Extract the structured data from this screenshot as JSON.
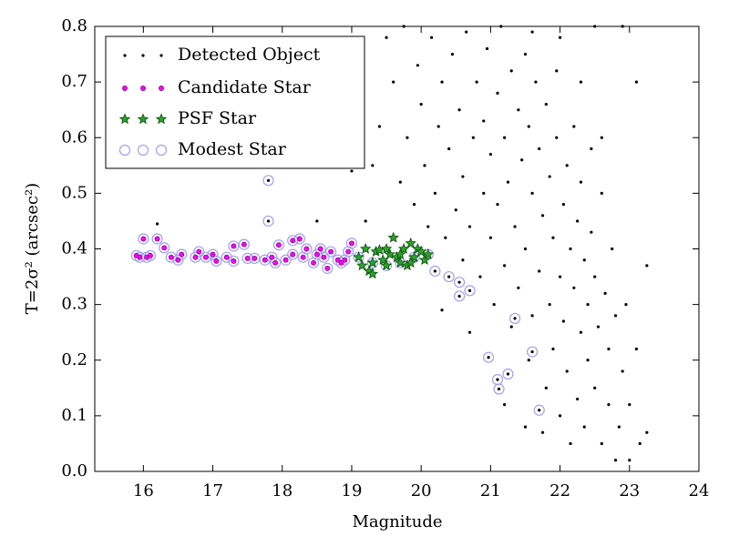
{
  "chart_data": {
    "type": "scatter",
    "xlabel": "Magnitude",
    "ylabel": "T=2σ² (arcsec²)",
    "xlim": [
      15.3,
      24
    ],
    "ylim": [
      0,
      0.8
    ],
    "xticks": [
      16,
      17,
      18,
      19,
      20,
      21,
      22,
      23,
      24
    ],
    "yticks": [
      {
        "value": 0,
        "label": "0.0"
      },
      0.1,
      0.2,
      0.3,
      0.4,
      0.5,
      0.6,
      0.7,
      0.8
    ],
    "legend": "upper left",
    "series": [
      {
        "name": "Modest Star",
        "color": "#9f9ff5",
        "marker": "open-circle",
        "x": [
          15.9,
          15.95,
          16.0,
          16.05,
          16.1,
          16.2,
          16.3,
          16.4,
          16.5,
          16.55,
          16.75,
          16.8,
          16.9,
          17.0,
          17.05,
          17.2,
          17.3,
          17.3,
          17.45,
          17.5,
          17.6,
          17.75,
          17.85,
          17.9,
          17.95,
          18.05,
          18.15,
          18.15,
          18.25,
          18.3,
          18.35,
          18.45,
          18.5,
          18.55,
          18.6,
          18.65,
          18.7,
          18.8,
          18.85,
          18.9,
          18.95,
          19.0,
          17.8,
          17.8,
          19.1,
          19.3,
          19.5,
          19.7,
          19.9,
          20.1,
          20.2,
          20.4,
          20.55,
          20.55,
          20.7,
          20.97,
          21.1,
          21.12,
          21.25,
          21.35,
          21.6,
          21.7
        ],
        "y": [
          0.388,
          0.385,
          0.418,
          0.385,
          0.388,
          0.418,
          0.402,
          0.385,
          0.38,
          0.39,
          0.385,
          0.395,
          0.385,
          0.39,
          0.378,
          0.385,
          0.405,
          0.378,
          0.408,
          0.383,
          0.383,
          0.38,
          0.385,
          0.375,
          0.407,
          0.38,
          0.39,
          0.415,
          0.418,
          0.385,
          0.4,
          0.375,
          0.39,
          0.4,
          0.385,
          0.365,
          0.395,
          0.38,
          0.375,
          0.38,
          0.395,
          0.41,
          0.45,
          0.523,
          0.385,
          0.375,
          0.37,
          0.375,
          0.385,
          0.39,
          0.36,
          0.35,
          0.34,
          0.315,
          0.325,
          0.205,
          0.165,
          0.148,
          0.175,
          0.275,
          0.215,
          0.11
        ]
      },
      {
        "name": "Detected Object",
        "color": "#000000",
        "marker": "dot",
        "x": [
          19.0,
          19.2,
          19.4,
          19.5,
          19.6,
          19.7,
          19.75,
          19.8,
          19.9,
          19.95,
          20.0,
          20.05,
          20.1,
          20.15,
          20.2,
          20.25,
          20.3,
          20.35,
          20.4,
          20.45,
          20.5,
          20.55,
          20.6,
          20.6,
          20.65,
          20.7,
          20.75,
          20.8,
          20.85,
          20.9,
          20.9,
          20.95,
          21.0,
          21.0,
          21.05,
          21.1,
          21.1,
          21.15,
          21.2,
          21.2,
          21.25,
          21.3,
          21.3,
          21.35,
          21.4,
          21.4,
          21.45,
          21.5,
          21.5,
          21.55,
          21.55,
          21.6,
          21.6,
          21.65,
          21.7,
          21.7,
          21.75,
          21.8,
          21.8,
          21.85,
          21.85,
          21.9,
          21.9,
          21.95,
          22.0,
          22.0,
          22.05,
          22.05,
          22.1,
          22.1,
          22.15,
          22.15,
          22.2,
          22.2,
          22.25,
          22.25,
          22.3,
          22.3,
          22.35,
          22.35,
          22.4,
          22.4,
          22.45,
          22.5,
          22.5,
          22.55,
          22.6,
          22.6,
          22.65,
          22.7,
          22.7,
          22.75,
          22.8,
          22.85,
          22.9,
          22.95,
          23.0,
          23.0,
          23.1,
          23.1,
          23.15,
          23.25,
          23.25,
          22.9,
          22.5,
          22.0,
          21.6,
          21.95,
          22.3,
          22.6,
          18.9,
          19.3,
          18.5,
          20.3,
          20.7,
          21.2,
          21.5,
          22.8,
          21.75,
          22.45,
          16.2,
          17.8,
          17.8,
          20.2,
          20.4,
          20.55,
          20.55,
          20.7,
          20.97,
          21.1,
          21.12,
          21.25,
          21.35,
          21.6,
          21.7
        ],
        "y": [
          0.54,
          0.45,
          0.62,
          0.78,
          0.7,
          0.52,
          0.8,
          0.6,
          0.48,
          0.73,
          0.66,
          0.55,
          0.44,
          0.78,
          0.5,
          0.62,
          0.7,
          0.42,
          0.58,
          0.75,
          0.47,
          0.65,
          0.38,
          0.53,
          0.79,
          0.44,
          0.6,
          0.7,
          0.35,
          0.5,
          0.63,
          0.76,
          0.42,
          0.57,
          0.3,
          0.68,
          0.48,
          0.8,
          0.37,
          0.6,
          0.52,
          0.72,
          0.26,
          0.44,
          0.65,
          0.33,
          0.56,
          0.75,
          0.4,
          0.2,
          0.62,
          0.5,
          0.28,
          0.7,
          0.36,
          0.58,
          0.46,
          0.15,
          0.66,
          0.3,
          0.53,
          0.42,
          0.22,
          0.6,
          0.35,
          0.1,
          0.48,
          0.27,
          0.55,
          0.18,
          0.4,
          0.05,
          0.33,
          0.62,
          0.45,
          0.13,
          0.25,
          0.52,
          0.38,
          0.08,
          0.3,
          0.2,
          0.43,
          0.15,
          0.35,
          0.26,
          0.05,
          0.5,
          0.32,
          0.12,
          0.22,
          0.4,
          0.28,
          0.08,
          0.18,
          0.3,
          0.12,
          0.02,
          0.22,
          0.7,
          0.05,
          0.37,
          0.07,
          0.8,
          0.8,
          0.78,
          0.79,
          0.72,
          0.7,
          0.6,
          0.58,
          0.55,
          0.45,
          0.29,
          0.25,
          0.12,
          0.08,
          0.02,
          0.07,
          0.58,
          0.445,
          0.45,
          0.523,
          0.36,
          0.35,
          0.34,
          0.315,
          0.325,
          0.205,
          0.165,
          0.148,
          0.175,
          0.275,
          0.215,
          0.11
        ]
      },
      {
        "name": "Candidate Star",
        "color": "#ff00ff",
        "marker": "circle",
        "x": [
          15.9,
          15.95,
          16.0,
          16.05,
          16.1,
          16.2,
          16.3,
          16.4,
          16.5,
          16.55,
          16.75,
          16.8,
          16.9,
          17.0,
          17.05,
          17.2,
          17.3,
          17.3,
          17.45,
          17.5,
          17.6,
          17.75,
          17.85,
          17.9,
          17.95,
          18.05,
          18.15,
          18.15,
          18.25,
          18.3,
          18.35,
          18.45,
          18.5,
          18.55,
          18.6,
          18.65,
          18.7,
          18.8,
          18.85,
          18.9,
          18.95,
          19.0
        ],
        "y": [
          0.388,
          0.385,
          0.418,
          0.385,
          0.388,
          0.418,
          0.402,
          0.385,
          0.38,
          0.39,
          0.385,
          0.395,
          0.385,
          0.39,
          0.378,
          0.385,
          0.405,
          0.378,
          0.408,
          0.383,
          0.383,
          0.38,
          0.385,
          0.375,
          0.407,
          0.38,
          0.39,
          0.415,
          0.418,
          0.385,
          0.4,
          0.375,
          0.39,
          0.4,
          0.385,
          0.365,
          0.395,
          0.38,
          0.375,
          0.38,
          0.395,
          0.41
        ]
      },
      {
        "name": "PSF Star",
        "color": "#2ca02c",
        "marker": "star",
        "x": [
          19.1,
          19.15,
          19.2,
          19.25,
          19.3,
          19.35,
          19.4,
          19.45,
          19.5,
          19.55,
          19.6,
          19.65,
          19.7,
          19.75,
          19.8,
          19.85,
          19.9,
          19.95,
          20.0,
          20.05,
          20.1,
          19.3,
          19.5,
          19.7,
          19.85
        ],
        "y": [
          0.385,
          0.37,
          0.4,
          0.36,
          0.375,
          0.395,
          0.398,
          0.38,
          0.37,
          0.39,
          0.42,
          0.385,
          0.375,
          0.4,
          0.37,
          0.41,
          0.385,
          0.4,
          0.395,
          0.38,
          0.39,
          0.355,
          0.4,
          0.39,
          0.375
        ]
      }
    ]
  }
}
